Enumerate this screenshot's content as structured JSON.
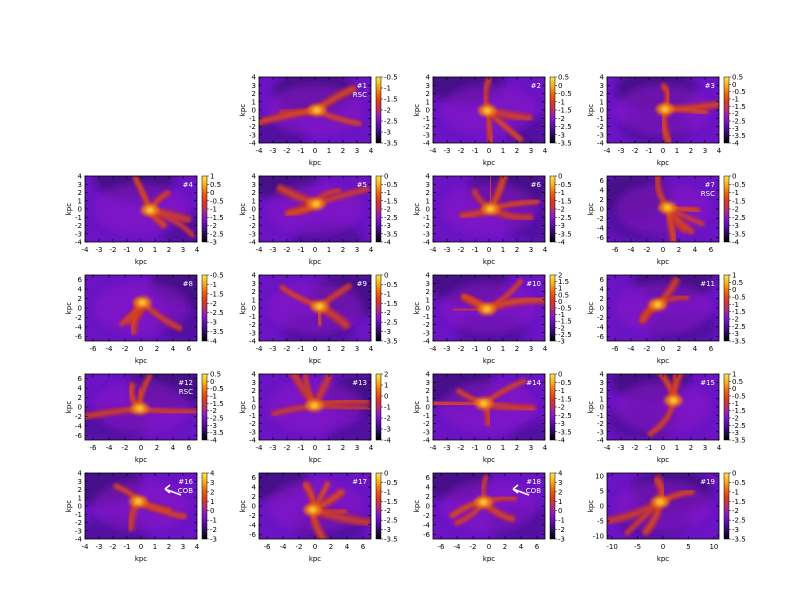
{
  "figure": {
    "axis_label": "kpc",
    "colormap": [
      "#000000",
      "#2a0a5a",
      "#5a0fa8",
      "#8a19c8",
      "#b8306e",
      "#dd3a1a",
      "#ee6a10",
      "#fbb318",
      "#ffe64c"
    ]
  },
  "chart_data": [
    {
      "type": "heatmap",
      "id": "#1",
      "labels": [
        "#1",
        "RSC"
      ],
      "xlim": [
        -4,
        4
      ],
      "ylim": [
        -4,
        4
      ],
      "xticks": [
        -4,
        -3,
        -2,
        -1,
        0,
        1,
        2,
        3,
        4
      ],
      "yticks": [
        4,
        3,
        2,
        1,
        0,
        -1,
        -2,
        -3,
        -4
      ],
      "colorbar": {
        "ticks": [
          -0.5,
          -1,
          -1.5,
          -2,
          -2.5,
          -3,
          -3.5
        ]
      },
      "xlabel": "kpc",
      "ylabel": "kpc"
    },
    {
      "type": "heatmap",
      "id": "#2",
      "labels": [
        "#2"
      ],
      "xlim": [
        -4,
        4
      ],
      "ylim": [
        -4,
        4
      ],
      "xticks": [
        -4,
        -3,
        -2,
        -1,
        0,
        1,
        2,
        3,
        4
      ],
      "yticks": [
        4,
        3,
        2,
        1,
        0,
        -1,
        -2,
        -3,
        -4
      ],
      "colorbar": {
        "ticks": [
          0.5,
          0,
          -0.5,
          -1,
          -1.5,
          -2,
          -2.5,
          -3,
          -3.5
        ]
      },
      "xlabel": "kpc",
      "ylabel": "kpc"
    },
    {
      "type": "heatmap",
      "id": "#3",
      "labels": [
        "#3"
      ],
      "xlim": [
        -4,
        4
      ],
      "ylim": [
        -4,
        4
      ],
      "xticks": [
        -4,
        -3,
        -2,
        -1,
        0,
        1,
        2,
        3,
        4
      ],
      "yticks": [
        4,
        3,
        2,
        1,
        0,
        -1,
        -2,
        -3,
        -4
      ],
      "colorbar": {
        "ticks": [
          0.5,
          0,
          -0.5,
          -1,
          -1.5,
          -2,
          -2.5,
          -3,
          -3.5,
          -4
        ]
      },
      "xlabel": "kpc",
      "ylabel": "kpc"
    },
    {
      "type": "heatmap",
      "id": "#4",
      "labels": [
        "#4"
      ],
      "xlim": [
        -4,
        4
      ],
      "ylim": [
        -4,
        4
      ],
      "xticks": [
        -4,
        -3,
        -2,
        -1,
        0,
        1,
        2,
        3,
        4
      ],
      "yticks": [
        4,
        3,
        2,
        1,
        0,
        -1,
        -2,
        -3,
        -4
      ],
      "colorbar": {
        "ticks": [
          1,
          0.5,
          0,
          -0.5,
          -1,
          -1.5,
          -2,
          -2.5,
          -3
        ]
      },
      "xlabel": "kpc",
      "ylabel": "kpc"
    },
    {
      "type": "heatmap",
      "id": "#5",
      "labels": [
        "#5"
      ],
      "xlim": [
        -4,
        4
      ],
      "ylim": [
        -4,
        4
      ],
      "xticks": [
        -4,
        -3,
        -2,
        -1,
        0,
        1,
        2,
        3,
        4
      ],
      "yticks": [
        4,
        3,
        2,
        1,
        0,
        -1,
        -2,
        -3,
        -4
      ],
      "colorbar": {
        "ticks": [
          0,
          -0.5,
          -1,
          -1.5,
          -2,
          -2.5,
          -3,
          -3.5,
          -4
        ]
      },
      "xlabel": "kpc",
      "ylabel": "kpc"
    },
    {
      "type": "heatmap",
      "id": "#6",
      "labels": [
        "#6"
      ],
      "xlim": [
        -4,
        4
      ],
      "ylim": [
        -4,
        4
      ],
      "xticks": [
        -4,
        -3,
        -2,
        -1,
        0,
        1,
        2,
        3,
        4
      ],
      "yticks": [
        4,
        3,
        2,
        1,
        0,
        -1,
        -2,
        -3,
        -4
      ],
      "colorbar": {
        "ticks": [
          0,
          -0.5,
          -1,
          -1.5,
          -2,
          -2.5,
          -3,
          -3.5,
          -4
        ]
      },
      "xlabel": "kpc",
      "ylabel": "kpc"
    },
    {
      "type": "heatmap",
      "id": "#7",
      "labels": [
        "#7",
        "RSC"
      ],
      "xlim": [
        -7,
        7
      ],
      "ylim": [
        -7,
        7
      ],
      "xticks": [
        -6,
        -4,
        -2,
        0,
        2,
        4,
        6
      ],
      "yticks": [
        6,
        4,
        2,
        0,
        -2,
        -4,
        -6
      ],
      "colorbar": {
        "ticks": [
          0,
          -0.5,
          -1,
          -1.5,
          -2,
          -2.5,
          -3,
          -3.5,
          -4
        ]
      },
      "xlabel": "kpc",
      "ylabel": "kpc"
    },
    {
      "type": "heatmap",
      "id": "#8",
      "labels": [
        "#8"
      ],
      "xlim": [
        -7,
        7
      ],
      "ylim": [
        -7,
        7
      ],
      "xticks": [
        -6,
        -4,
        -2,
        0,
        2,
        4,
        6
      ],
      "yticks": [
        6,
        4,
        2,
        0,
        -2,
        -4,
        -6
      ],
      "colorbar": {
        "ticks": [
          -0.5,
          -1,
          -1.5,
          -2,
          -2.5,
          -3,
          -3.5,
          -4
        ]
      },
      "xlabel": "kpc",
      "ylabel": "kpc"
    },
    {
      "type": "heatmap",
      "id": "#9",
      "labels": [
        "#9"
      ],
      "xlim": [
        -4,
        4
      ],
      "ylim": [
        -4,
        4
      ],
      "xticks": [
        -4,
        -3,
        -2,
        -1,
        0,
        1,
        2,
        3,
        4
      ],
      "yticks": [
        4,
        3,
        2,
        1,
        0,
        -1,
        -2,
        -3,
        -4
      ],
      "colorbar": {
        "ticks": [
          0,
          -0.5,
          -1,
          -1.5,
          -2,
          -2.5,
          -3,
          -3.5
        ]
      },
      "xlabel": "kpc",
      "ylabel": "kpc"
    },
    {
      "type": "heatmap",
      "id": "#10",
      "labels": [
        "#10"
      ],
      "xlim": [
        -4,
        4
      ],
      "ylim": [
        -4,
        4
      ],
      "xticks": [
        -4,
        -3,
        -2,
        -1,
        0,
        1,
        2,
        3,
        4
      ],
      "yticks": [
        4,
        3,
        2,
        1,
        0,
        -1,
        -2,
        -3,
        -4
      ],
      "colorbar": {
        "ticks": [
          2,
          1.5,
          1,
          0.5,
          0,
          -0.5,
          -1,
          -1.5,
          -2,
          -2.5,
          -3
        ]
      },
      "xlabel": "kpc",
      "ylabel": "kpc"
    },
    {
      "type": "heatmap",
      "id": "#11",
      "labels": [
        "#11"
      ],
      "xlim": [
        -7,
        7
      ],
      "ylim": [
        -7,
        7
      ],
      "xticks": [
        -6,
        -4,
        -2,
        0,
        2,
        4,
        6
      ],
      "yticks": [
        6,
        4,
        2,
        0,
        -2,
        -4,
        -6
      ],
      "colorbar": {
        "ticks": [
          1,
          0.5,
          0,
          -0.5,
          -1,
          -1.5,
          -2,
          -2.5,
          -3,
          -3.5
        ]
      },
      "xlabel": "kpc",
      "ylabel": "kpc"
    },
    {
      "type": "heatmap",
      "id": "#12",
      "labels": [
        "#12",
        "RSC"
      ],
      "xlim": [
        -7,
        7
      ],
      "ylim": [
        -7,
        7
      ],
      "xticks": [
        -6,
        -4,
        -2,
        0,
        2,
        4,
        6
      ],
      "yticks": [
        6,
        4,
        2,
        0,
        -2,
        -4,
        -6
      ],
      "colorbar": {
        "ticks": [
          0.5,
          0,
          -0.5,
          -1,
          -1.5,
          -2,
          -2.5,
          -3,
          -3.5,
          -4
        ]
      },
      "xlabel": "kpc",
      "ylabel": "kpc"
    },
    {
      "type": "heatmap",
      "id": "#13",
      "labels": [
        "#13"
      ],
      "xlim": [
        -4,
        4
      ],
      "ylim": [
        -4,
        4
      ],
      "xticks": [
        -4,
        -3,
        -2,
        -1,
        0,
        1,
        2,
        3,
        4
      ],
      "yticks": [
        4,
        3,
        2,
        1,
        0,
        -1,
        -2,
        -3,
        -4
      ],
      "colorbar": {
        "ticks": [
          2,
          1,
          0,
          -1,
          -2,
          -3,
          -4
        ]
      },
      "xlabel": "kpc",
      "ylabel": "kpc"
    },
    {
      "type": "heatmap",
      "id": "#14",
      "labels": [
        "#14"
      ],
      "xlim": [
        -4,
        4
      ],
      "ylim": [
        -4,
        4
      ],
      "xticks": [
        -4,
        -3,
        -2,
        -1,
        0,
        1,
        2,
        3,
        4
      ],
      "yticks": [
        4,
        3,
        2,
        1,
        0,
        -1,
        -2,
        -3,
        -4
      ],
      "colorbar": {
        "ticks": [
          0,
          -0.5,
          -1,
          -1.5,
          -2,
          -2.5,
          -3,
          -3.5,
          -4
        ]
      },
      "xlabel": "kpc",
      "ylabel": "kpc"
    },
    {
      "type": "heatmap",
      "id": "#15",
      "labels": [
        "#15"
      ],
      "xlim": [
        -4,
        4
      ],
      "ylim": [
        -4,
        4
      ],
      "xticks": [
        -4,
        -3,
        -2,
        -1,
        0,
        1,
        2,
        3,
        4
      ],
      "yticks": [
        4,
        3,
        2,
        1,
        0,
        -1,
        -2,
        -3,
        -4
      ],
      "colorbar": {
        "ticks": [
          1,
          0.5,
          0,
          -0.5,
          -1,
          -1.5,
          -2,
          -2.5,
          -3,
          -3.5
        ]
      },
      "xlabel": "kpc",
      "ylabel": "kpc"
    },
    {
      "type": "heatmap",
      "id": "#16",
      "labels": [
        "#16",
        "COB"
      ],
      "xlim": [
        -4,
        4
      ],
      "ylim": [
        -4,
        4
      ],
      "xticks": [
        -4,
        -3,
        -2,
        -1,
        0,
        1,
        2,
        3,
        4
      ],
      "yticks": [
        4,
        3,
        2,
        1,
        0,
        -1,
        -2,
        -3,
        -4
      ],
      "colorbar": {
        "ticks": [
          4,
          3,
          2,
          1,
          0,
          -1,
          -2,
          -3
        ]
      },
      "xlabel": "kpc",
      "ylabel": "kpc"
    },
    {
      "type": "heatmap",
      "id": "#17",
      "labels": [
        "#17"
      ],
      "xlim": [
        -7,
        7
      ],
      "ylim": [
        -7,
        7
      ],
      "xticks": [
        -6,
        -4,
        -2,
        0,
        2,
        4,
        6
      ],
      "yticks": [
        6,
        4,
        2,
        0,
        -2,
        -4,
        -6
      ],
      "colorbar": {
        "ticks": [
          0,
          -0.5,
          -1,
          -1.5,
          -2,
          -2.5,
          -3,
          -3.5
        ]
      },
      "xlabel": "kpc",
      "ylabel": "kpc"
    },
    {
      "type": "heatmap",
      "id": "#18",
      "labels": [
        "#18",
        "COB"
      ],
      "xlim": [
        -7,
        7
      ],
      "ylim": [
        -7,
        7
      ],
      "xticks": [
        -6,
        -4,
        -2,
        0,
        2,
        4,
        6
      ],
      "yticks": [
        6,
        4,
        2,
        0,
        -2,
        -4,
        -6
      ],
      "colorbar": {
        "ticks": [
          4,
          3,
          2,
          1,
          0,
          -1,
          -2,
          -3
        ]
      },
      "xlabel": "kpc",
      "ylabel": "kpc"
    },
    {
      "type": "heatmap",
      "id": "#19",
      "labels": [
        "#19"
      ],
      "xlim": [
        -11,
        11
      ],
      "ylim": [
        -11,
        11
      ],
      "xticks": [
        -10,
        -5,
        0,
        5,
        10
      ],
      "yticks": [
        10,
        5,
        0,
        -5,
        -10
      ],
      "colorbar": {
        "ticks": [
          0,
          -0.5,
          -1,
          -1.5,
          -2,
          -2.5,
          -3,
          -3.5
        ]
      },
      "xlabel": "kpc",
      "ylabel": "kpc"
    }
  ]
}
